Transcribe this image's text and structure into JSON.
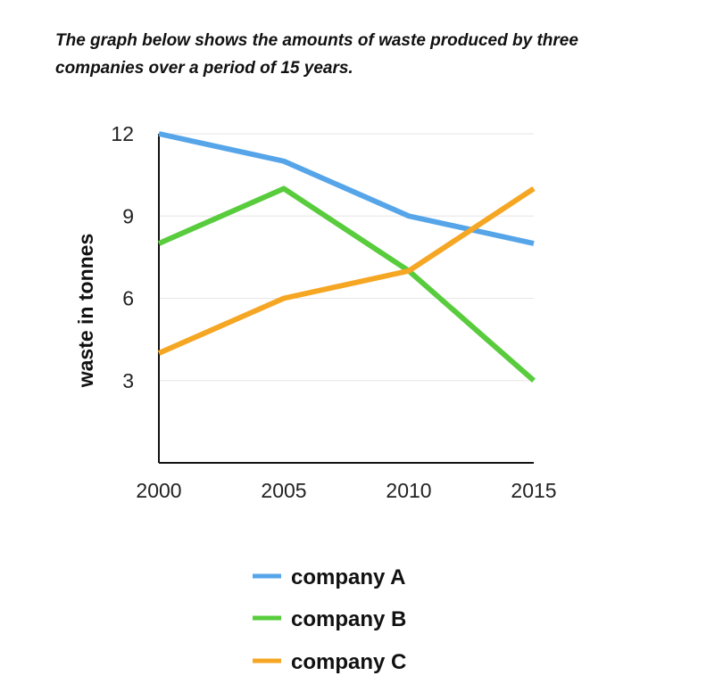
{
  "caption": {
    "line1": "The graph below shows the amounts of waste produced by three",
    "line2": "companies over a period of 15 years."
  },
  "chart_data": {
    "type": "line",
    "x": [
      2000,
      2005,
      2010,
      2015
    ],
    "xticks": [
      "2000",
      "2005",
      "2010",
      "2015"
    ],
    "yticks": [
      "3",
      "6",
      "9",
      "12"
    ],
    "ylabel": "waste in tonnes",
    "xlabel": "",
    "ylim": [
      0,
      12
    ],
    "xlim": [
      2000,
      2015
    ],
    "grid": true,
    "legend_position": "bottom",
    "series": [
      {
        "name": "company A",
        "color": "#56A5E9",
        "values": [
          12,
          11,
          9,
          8
        ]
      },
      {
        "name": "company B",
        "color": "#58CC3C",
        "values": [
          8,
          10,
          7,
          3
        ]
      },
      {
        "name": "company C",
        "color": "#F5A623",
        "values": [
          4,
          6,
          7,
          10
        ]
      }
    ]
  }
}
